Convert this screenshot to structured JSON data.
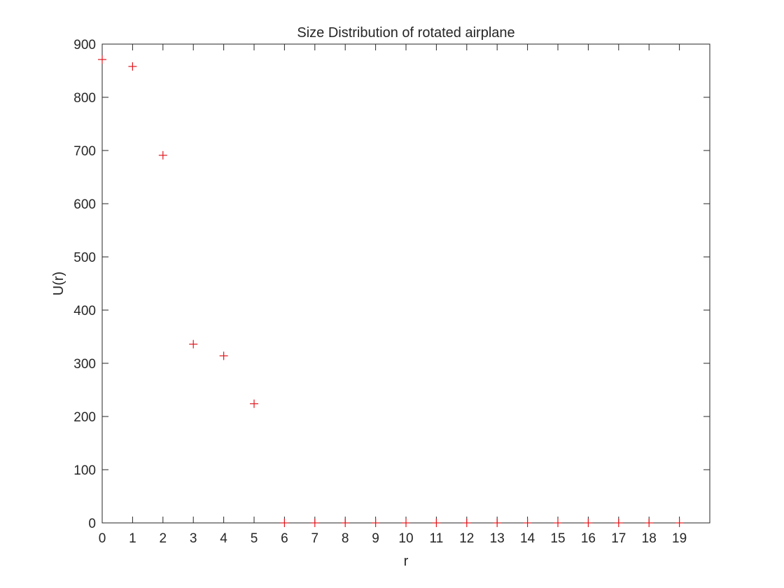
{
  "chart_data": {
    "type": "scatter",
    "title": "Size Distribution of rotated airplane",
    "xlabel": "r",
    "ylabel": "U(r)",
    "xlim": [
      0,
      20
    ],
    "ylim": [
      0,
      900
    ],
    "xticks": [
      0,
      1,
      2,
      3,
      4,
      5,
      6,
      7,
      8,
      9,
      10,
      11,
      12,
      13,
      14,
      15,
      16,
      17,
      18,
      19
    ],
    "yticks": [
      0,
      100,
      200,
      300,
      400,
      500,
      600,
      700,
      800,
      900
    ],
    "grid": false,
    "marker": "+",
    "marker_color": "#e0161c",
    "series": [
      {
        "x": [
          0,
          1,
          2,
          3,
          4,
          5,
          6,
          7,
          8,
          9,
          10,
          11,
          12,
          13,
          14,
          15,
          16,
          17,
          18,
          19
        ],
        "y": [
          871,
          858,
          691,
          336,
          314,
          224,
          0,
          0,
          0,
          0,
          0,
          0,
          0,
          0,
          0,
          0,
          0,
          0,
          0,
          0
        ]
      }
    ]
  }
}
